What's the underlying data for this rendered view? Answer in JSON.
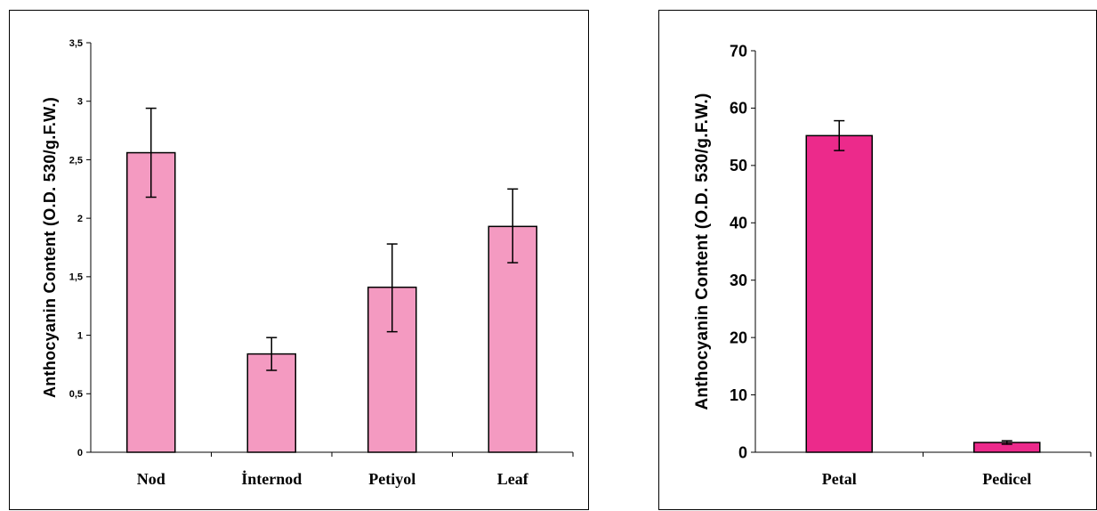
{
  "chart_data": [
    {
      "type": "bar",
      "title": "",
      "xlabel": "",
      "ylabel": "Anthocyanin Content (O.D. 530/g.F.W.)",
      "categories": [
        "Nod",
        "İnternod",
        "Petiyol",
        "Leaf"
      ],
      "values": [
        2.56,
        0.84,
        1.41,
        1.93
      ],
      "error_low": [
        2.18,
        0.7,
        1.03,
        1.62
      ],
      "error_high": [
        2.94,
        0.98,
        1.78,
        2.25
      ],
      "ylim": [
        0,
        3.5
      ],
      "yticks": [
        0,
        0.5,
        1,
        1.5,
        2,
        2.5,
        3,
        3.5
      ],
      "yticklabels": [
        "0",
        "0,5",
        "1",
        "1,5",
        "2",
        "2,5",
        "3",
        "3,5"
      ],
      "bar_color": "#F49AC1",
      "grid": false
    },
    {
      "type": "bar",
      "title": "",
      "xlabel": "",
      "ylabel": "Anthocyanin Content (O.D. 530/g.F.W.)",
      "categories": [
        "Petal",
        "Pedicel"
      ],
      "values": [
        55.2,
        1.7
      ],
      "error_low": [
        52.6,
        1.4
      ],
      "error_high": [
        57.8,
        2.0
      ],
      "ylim": [
        0,
        70
      ],
      "yticks": [
        0,
        10,
        20,
        30,
        40,
        50,
        60,
        70
      ],
      "yticklabels": [
        "0",
        "10",
        "20",
        "30",
        "40",
        "50",
        "60",
        "70"
      ],
      "bar_color": "#EC2A8B",
      "grid": false
    }
  ]
}
